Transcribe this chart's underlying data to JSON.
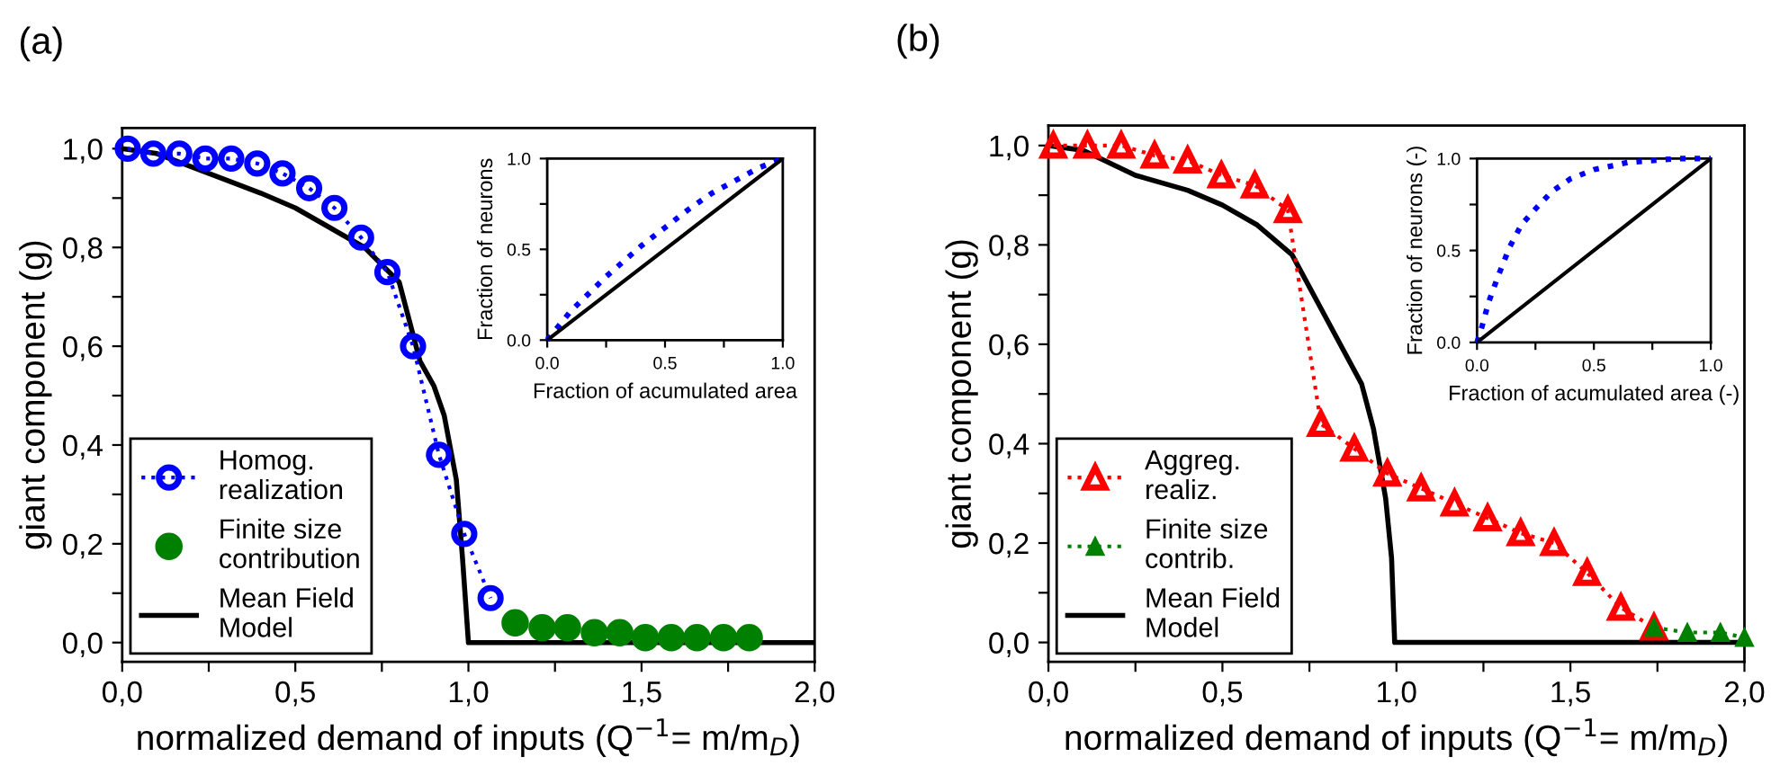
{
  "chart_data": [
    {
      "type": "line",
      "title": "(a)",
      "xlabel": "normalized demand of inputs (Q$^{−1}$= m/m$_{D}$)",
      "ylabel": "giant component (g)",
      "xlim": [
        0,
        2
      ],
      "ylim": [
        -0.039,
        1.042
      ],
      "xticks": [
        {
          "value": 0,
          "label": "0,0"
        },
        {
          "value": 0.25,
          "label": null
        },
        {
          "value": 0.5,
          "label": "0,5"
        },
        {
          "value": 0.75,
          "label": null
        },
        {
          "value": 1,
          "label": "1,0"
        },
        {
          "value": 1.25,
          "label": null
        },
        {
          "value": 1.5,
          "label": "1,5"
        },
        {
          "value": 1.75,
          "label": null
        },
        {
          "value": 2,
          "label": "2,0"
        }
      ],
      "yticks": [
        {
          "value": 0,
          "label": "0,0"
        },
        {
          "value": 0.1,
          "label": null
        },
        {
          "value": 0.2,
          "label": "0,2"
        },
        {
          "value": 0.3,
          "label": null
        },
        {
          "value": 0.4,
          "label": "0,4"
        },
        {
          "value": 0.5,
          "label": null
        },
        {
          "value": 0.6,
          "label": "0,6"
        },
        {
          "value": 0.7,
          "label": null
        },
        {
          "value": 0.8,
          "label": "0,8"
        },
        {
          "value": 0.9,
          "label": null
        },
        {
          "value": 1,
          "label": "1,0"
        }
      ],
      "grid": false,
      "legend": "bottom left",
      "series": [
        {
          "name": "Homog.\nrealization",
          "color": "#0000ff",
          "marker": "circle",
          "line_style": "dotted",
          "x": [
            0.016,
            0.09,
            0.165,
            0.24,
            0.315,
            0.39,
            0.463,
            0.54,
            0.613,
            0.69,
            0.766,
            0.84,
            0.915,
            0.988,
            1.064
          ],
          "values": [
            1.0,
            0.99,
            0.99,
            0.98,
            0.98,
            0.97,
            0.95,
            0.92,
            0.88,
            0.82,
            0.75,
            0.6,
            0.38,
            0.22,
            0.09
          ]
        },
        {
          "name": "Finite size\ncontribution",
          "type": "scatter",
          "color": "#008000",
          "marker": "circle",
          "x": [
            1.135,
            1.213,
            1.286,
            1.364,
            1.437,
            1.511,
            1.586,
            1.66,
            1.737,
            1.811
          ],
          "values": [
            0.04,
            0.03,
            0.03,
            0.02,
            0.02,
            0.01,
            0.01,
            0.01,
            0.01,
            0.01
          ]
        },
        {
          "name": "Mean Field\nModel",
          "color": "#000000",
          "line_style": "solid",
          "x": [
            0,
            0.1,
            0.25,
            0.4,
            0.5,
            0.6,
            0.7,
            0.8,
            0.86,
            0.9,
            0.93,
            0.965,
            0.983,
            0.99,
            1.0,
            2.0
          ],
          "values": [
            1.0,
            0.99,
            0.95,
            0.91,
            0.88,
            0.84,
            0.8,
            0.73,
            0.57,
            0.52,
            0.46,
            0.33,
            0.17,
            0.1,
            0.0,
            0.0
          ]
        }
      ]
    },
    {
      "type": "line",
      "xlabel": "Fraction of acumulated area",
      "ylabel": "Fraction of neurons",
      "xlim": [
        0,
        1
      ],
      "ylim": [
        0,
        1
      ],
      "xticks": [
        {
          "value": 0,
          "label": "0.0"
        },
        {
          "value": 0.25,
          "label": null
        },
        {
          "value": 0.5,
          "label": "0.5"
        },
        {
          "value": 0.75,
          "label": null
        },
        {
          "value": 1,
          "label": "1.0"
        }
      ],
      "yticks": [
        {
          "value": 0,
          "label": "0.0"
        },
        {
          "value": 0.25,
          "label": null
        },
        {
          "value": 0.5,
          "label": "0.5"
        },
        {
          "value": 0.75,
          "label": null
        },
        {
          "value": 1,
          "label": "1.0"
        }
      ],
      "grid": false,
      "series": [
        {
          "color": "#0000ff",
          "line_style": "dotted",
          "x": [
            0,
            0.1,
            0.25,
            0.4,
            0.5,
            0.6,
            0.7,
            0.8,
            0.9,
            1.0
          ],
          "values": [
            0,
            0.16,
            0.35,
            0.52,
            0.62,
            0.72,
            0.81,
            0.88,
            0.95,
            1.0
          ]
        },
        {
          "color": "#000000",
          "line_style": "solid",
          "x": [
            0,
            1
          ],
          "values": [
            0,
            1
          ]
        }
      ]
    },
    {
      "type": "line",
      "title": "(b)",
      "xlabel": "normalized demand of inputs (Q$^{−1}$= m/m$_{D}$)",
      "ylabel": "giant component (g)",
      "xlim": [
        0,
        2
      ],
      "ylim": [
        -0.039,
        1.04
      ],
      "xticks": [
        {
          "value": 0,
          "label": "0,0"
        },
        {
          "value": 0.25,
          "label": null
        },
        {
          "value": 0.5,
          "label": "0,5"
        },
        {
          "value": 0.75,
          "label": null
        },
        {
          "value": 1,
          "label": "1,0"
        },
        {
          "value": 1.25,
          "label": null
        },
        {
          "value": 1.5,
          "label": "1,5"
        },
        {
          "value": 1.75,
          "label": null
        },
        {
          "value": 2,
          "label": "2,0"
        }
      ],
      "yticks": [
        {
          "value": 0,
          "label": "0,0"
        },
        {
          "value": 0.1,
          "label": null
        },
        {
          "value": 0.2,
          "label": "0,2"
        },
        {
          "value": 0.3,
          "label": null
        },
        {
          "value": 0.4,
          "label": "0,4"
        },
        {
          "value": 0.5,
          "label": null
        },
        {
          "value": 0.6,
          "label": "0,6"
        },
        {
          "value": 0.7,
          "label": null
        },
        {
          "value": 0.8,
          "label": "0,8"
        },
        {
          "value": 0.9,
          "label": null
        },
        {
          "value": 1,
          "label": "1,0"
        }
      ],
      "grid": false,
      "legend": "bottom left",
      "series": [
        {
          "name": "Aggreg.\nrealiz.",
          "color": "#ff0000",
          "marker": "triangle",
          "line_style": "dotted",
          "x": [
            0.014,
            0.112,
            0.209,
            0.305,
            0.4,
            0.497,
            0.593,
            0.688,
            0.783,
            0.879,
            0.974,
            1.071,
            1.167,
            1.262,
            1.357,
            1.453,
            1.548,
            1.645,
            1.74
          ],
          "values": [
            1.0,
            1.0,
            1.0,
            0.98,
            0.97,
            0.94,
            0.92,
            0.87,
            0.44,
            0.39,
            0.34,
            0.31,
            0.28,
            0.25,
            0.22,
            0.2,
            0.14,
            0.07,
            0.03
          ]
        },
        {
          "name": "Finite size\ncontrib.",
          "color": "#008000",
          "marker": "triangle",
          "line_style": "dotted",
          "x": [
            1.74,
            1.836,
            1.931,
            2.0
          ],
          "values": [
            0.03,
            0.02,
            0.02,
            0.01
          ]
        },
        {
          "name": "Mean Field\nModel",
          "color": "#000000",
          "line_style": "solid",
          "x": [
            0,
            0.1,
            0.25,
            0.4,
            0.5,
            0.6,
            0.7,
            0.8,
            0.9,
            0.934,
            0.969,
            0.986,
            0.995,
            2.0
          ],
          "values": [
            1.0,
            0.99,
            0.94,
            0.91,
            0.88,
            0.84,
            0.78,
            0.65,
            0.52,
            0.43,
            0.29,
            0.17,
            0.0,
            0.0
          ]
        }
      ]
    },
    {
      "type": "line",
      "xlabel": "Fraction of acumulated area (-)",
      "ylabel": "Fraction of neurons (-)",
      "xlim": [
        0,
        1
      ],
      "ylim": [
        0,
        1
      ],
      "xticks": [
        {
          "value": 0,
          "label": "0.0"
        },
        {
          "value": 0.25,
          "label": null
        },
        {
          "value": 0.5,
          "label": "0.5"
        },
        {
          "value": 0.75,
          "label": null
        },
        {
          "value": 1,
          "label": "1.0"
        }
      ],
      "yticks": [
        {
          "value": 0,
          "label": "0.0"
        },
        {
          "value": 0.25,
          "label": null
        },
        {
          "value": 0.5,
          "label": "0.5"
        },
        {
          "value": 0.75,
          "label": null
        },
        {
          "value": 1,
          "label": "1.0"
        }
      ],
      "grid": false,
      "series": [
        {
          "color": "#0000ff",
          "line_style": "dotted",
          "x": [
            0,
            0.02,
            0.05,
            0.09,
            0.14,
            0.19,
            0.26,
            0.32,
            0.4,
            0.5,
            0.65,
            0.86,
            1.0
          ],
          "values": [
            0,
            0.08,
            0.22,
            0.36,
            0.52,
            0.64,
            0.74,
            0.82,
            0.89,
            0.94,
            0.98,
            1.0,
            1.0
          ]
        },
        {
          "color": "#000000",
          "line_style": "solid",
          "x": [
            0,
            1
          ],
          "values": [
            0,
            1
          ]
        }
      ]
    }
  ]
}
